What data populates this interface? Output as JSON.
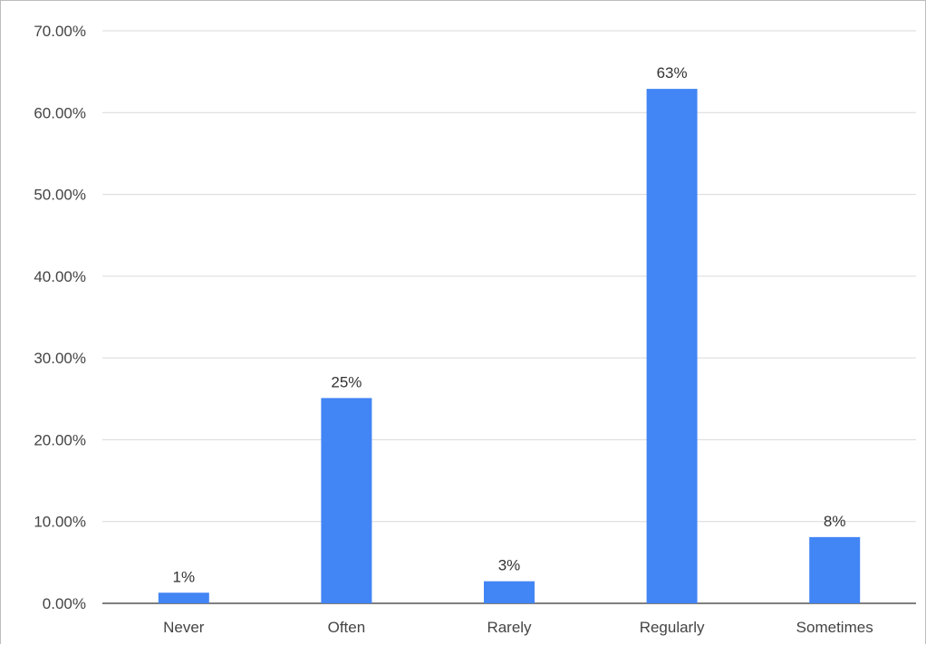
{
  "chart_data": {
    "type": "bar",
    "categories": [
      "Never",
      "Often",
      "Rarely",
      "Regularly",
      "Sometimes"
    ],
    "values": [
      1.3,
      25.1,
      2.7,
      62.9,
      8.1
    ],
    "data_labels": [
      "1%",
      "25%",
      "3%",
      "63%",
      "8%"
    ],
    "y_ticks": [
      0,
      10,
      20,
      30,
      40,
      50,
      60,
      70
    ],
    "y_tick_labels": [
      "0.00%",
      "10.00%",
      "20.00%",
      "30.00%",
      "40.00%",
      "50.00%",
      "60.00%",
      "70.00%"
    ],
    "ylim": [
      0,
      70
    ],
    "grid": true,
    "legend": "none",
    "bar_color": "#4285f4",
    "gridline_color": "#d9d9d9",
    "axis_line_color": "#555555"
  }
}
